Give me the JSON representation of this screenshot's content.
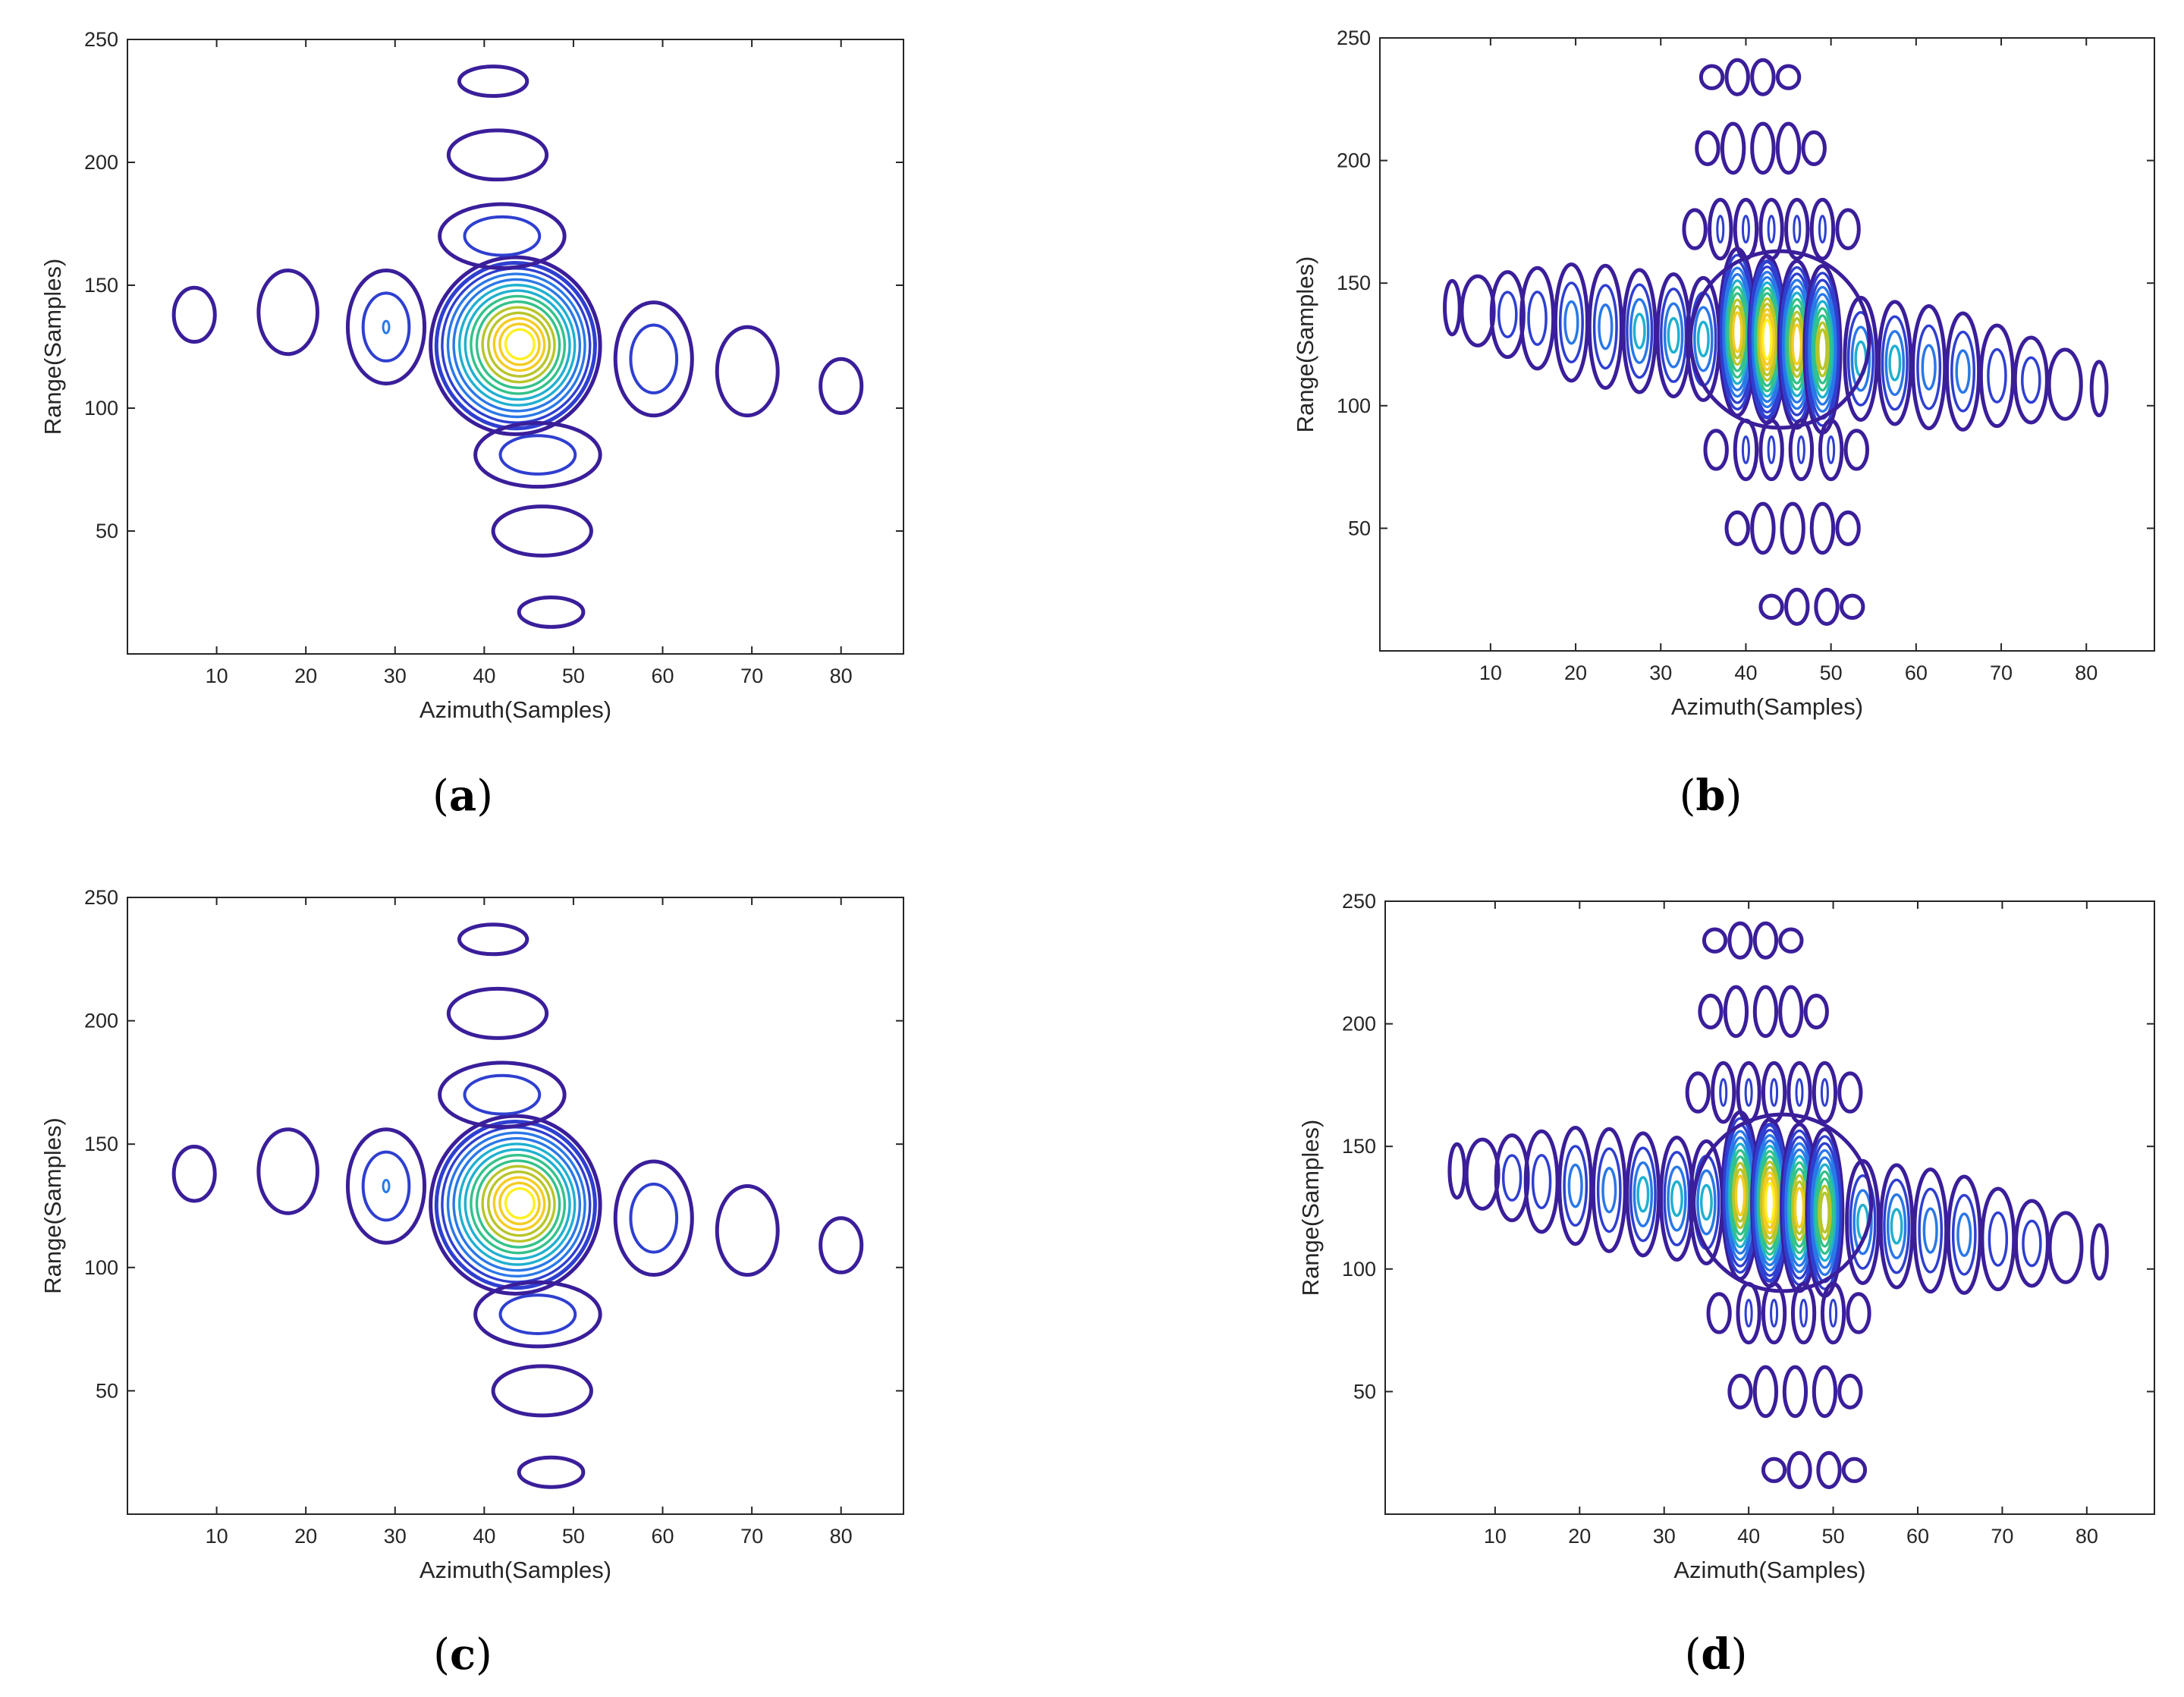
{
  "chart_data": [
    {
      "type": "contour",
      "panel": "a",
      "xlabel": "Azimuth(Samples)",
      "ylabel": "Range(Samples)",
      "xlim": [
        0,
        87
      ],
      "ylim": [
        0,
        250
      ],
      "xticks": [
        10,
        20,
        30,
        40,
        50,
        60,
        70,
        80
      ],
      "yticks": [
        50,
        100,
        150,
        200,
        250
      ],
      "grid": false,
      "colormap": [
        "#3a1e9a",
        "#2f3fd0",
        "#2a78e8",
        "#1fb0d0",
        "#33c28a",
        "#b8c52a",
        "#f4cc22",
        "#fff020"
      ],
      "mainlobe": {
        "x": 44,
        "y": 126,
        "levels": 14
      },
      "sidelobes": [
        {
          "x": 7.5,
          "y": 138,
          "rx": 2.3,
          "ry": 11,
          "levels": 1
        },
        {
          "x": 18,
          "y": 139,
          "rx": 3.3,
          "ry": 17,
          "levels": 1
        },
        {
          "x": 29,
          "y": 133,
          "rx": 4.3,
          "ry": 23,
          "levels": 2
        },
        {
          "x": 59,
          "y": 120,
          "rx": 4.3,
          "ry": 23,
          "levels": 2
        },
        {
          "x": 69.5,
          "y": 115,
          "rx": 3.4,
          "ry": 18,
          "levels": 1
        },
        {
          "x": 80,
          "y": 109,
          "rx": 2.3,
          "ry": 11,
          "levels": 1
        },
        {
          "x": 41,
          "y": 233,
          "rx": 3.8,
          "ry": 6,
          "levels": 1
        },
        {
          "x": 41.5,
          "y": 203,
          "rx": 5.5,
          "ry": 10,
          "levels": 1
        },
        {
          "x": 42,
          "y": 170,
          "rx": 7,
          "ry": 13,
          "levels": 2
        },
        {
          "x": 46,
          "y": 81,
          "rx": 7,
          "ry": 13,
          "levels": 2
        },
        {
          "x": 46.5,
          "y": 50,
          "rx": 5.5,
          "ry": 10,
          "levels": 1
        },
        {
          "x": 47.5,
          "y": 17,
          "rx": 3.6,
          "ry": 6,
          "levels": 1
        }
      ]
    },
    {
      "type": "contour",
      "panel": "b",
      "xlabel": "Azimuth(Samples)",
      "ylabel": "Range(Samples)",
      "xlim": [
        -3,
        88
      ],
      "ylim": [
        0,
        250
      ],
      "xticks": [
        10,
        20,
        30,
        40,
        50,
        60,
        70,
        80
      ],
      "yticks": [
        50,
        100,
        150,
        200,
        250
      ],
      "grid": false,
      "colormap": [
        "#3a1e9a",
        "#2f3fd0",
        "#2a78e8",
        "#1fb0d0",
        "#33c28a",
        "#b8c52a",
        "#f4cc22",
        "#fff020"
      ],
      "mainlobe_peaks": [
        {
          "x": 39,
          "y": 130,
          "levels": 11
        },
        {
          "x": 42.5,
          "y": 127,
          "levels": 13
        },
        {
          "x": 46,
          "y": 125,
          "levels": 11
        },
        {
          "x": 49,
          "y": 123,
          "levels": 10
        }
      ],
      "sidelobe_rows": [
        {
          "y": 234,
          "x": [
            36,
            39,
            42,
            45
          ]
        },
        {
          "y": 205,
          "x": [
            35.5,
            38.5,
            42,
            45,
            48
          ]
        },
        {
          "y": 172,
          "x": [
            34,
            37,
            40,
            43,
            46,
            49,
            52
          ]
        },
        {
          "y": 82,
          "x": [
            36.5,
            40,
            43,
            46.5,
            50,
            53
          ]
        },
        {
          "y": 50,
          "x": [
            39,
            42,
            45.5,
            49,
            52
          ]
        },
        {
          "y": 18,
          "x": [
            43,
            46,
            49.5,
            52.5
          ]
        }
      ],
      "range_row": {
        "x": [
          5.5,
          8.5,
          12,
          15.5,
          19.5,
          23.5,
          27.5,
          31.5,
          35,
          53.5,
          57.5,
          61.5,
          65.5,
          69.5,
          73.5,
          77.5,
          81.5
        ],
        "y_left": 140,
        "y_right": 107
      }
    },
    {
      "type": "contour",
      "panel": "c",
      "xlabel": "Azimuth(Samples)",
      "ylabel": "Range(Samples)",
      "xlim": [
        0,
        87
      ],
      "ylim": [
        0,
        250
      ],
      "xticks": [
        10,
        20,
        30,
        40,
        50,
        60,
        70,
        80
      ],
      "yticks": [
        50,
        100,
        150,
        200,
        250
      ],
      "grid": false,
      "colormap": [
        "#3a1e9a",
        "#2f3fd0",
        "#2a78e8",
        "#1fb0d0",
        "#33c28a",
        "#b8c52a",
        "#f4cc22",
        "#fff020"
      ],
      "mainlobe": {
        "x": 44,
        "y": 126,
        "levels": 14
      },
      "sidelobes": [
        {
          "x": 7.5,
          "y": 138,
          "rx": 2.3,
          "ry": 11,
          "levels": 1
        },
        {
          "x": 18,
          "y": 139,
          "rx": 3.3,
          "ry": 17,
          "levels": 1
        },
        {
          "x": 29,
          "y": 133,
          "rx": 4.3,
          "ry": 23,
          "levels": 2
        },
        {
          "x": 59,
          "y": 120,
          "rx": 4.3,
          "ry": 23,
          "levels": 2
        },
        {
          "x": 69.5,
          "y": 115,
          "rx": 3.4,
          "ry": 18,
          "levels": 1
        },
        {
          "x": 80,
          "y": 109,
          "rx": 2.3,
          "ry": 11,
          "levels": 1
        },
        {
          "x": 41,
          "y": 233,
          "rx": 3.8,
          "ry": 6,
          "levels": 1
        },
        {
          "x": 41.5,
          "y": 203,
          "rx": 5.5,
          "ry": 10,
          "levels": 1
        },
        {
          "x": 42,
          "y": 170,
          "rx": 7,
          "ry": 13,
          "levels": 2
        },
        {
          "x": 46,
          "y": 81,
          "rx": 7,
          "ry": 13,
          "levels": 2
        },
        {
          "x": 46.5,
          "y": 50,
          "rx": 5.5,
          "ry": 10,
          "levels": 1
        },
        {
          "x": 47.5,
          "y": 17,
          "rx": 3.6,
          "ry": 6,
          "levels": 1
        }
      ]
    },
    {
      "type": "contour",
      "panel": "d",
      "xlabel": "Azimuth(Samples)",
      "ylabel": "Range(Samples)",
      "xlim": [
        -3,
        88
      ],
      "ylim": [
        0,
        250
      ],
      "xticks": [
        10,
        20,
        30,
        40,
        50,
        60,
        70,
        80
      ],
      "yticks": [
        50,
        100,
        150,
        200,
        250
      ],
      "grid": false,
      "colormap": [
        "#3a1e9a",
        "#2f3fd0",
        "#2a78e8",
        "#1fb0d0",
        "#33c28a",
        "#b8c52a",
        "#f4cc22",
        "#fff020"
      ],
      "mainlobe_peaks": [
        {
          "x": 39,
          "y": 130,
          "levels": 11
        },
        {
          "x": 42.5,
          "y": 127,
          "levels": 13
        },
        {
          "x": 46,
          "y": 125,
          "levels": 11
        },
        {
          "x": 49,
          "y": 123,
          "levels": 10
        }
      ],
      "sidelobe_rows": [
        {
          "y": 234,
          "x": [
            36,
            39,
            42,
            45
          ]
        },
        {
          "y": 205,
          "x": [
            35.5,
            38.5,
            42,
            45,
            48
          ]
        },
        {
          "y": 172,
          "x": [
            34,
            37,
            40,
            43,
            46,
            49,
            52
          ]
        },
        {
          "y": 82,
          "x": [
            36.5,
            40,
            43,
            46.5,
            50,
            53
          ]
        },
        {
          "y": 50,
          "x": [
            39,
            42,
            45.5,
            49,
            52
          ]
        },
        {
          "y": 18,
          "x": [
            43,
            46,
            49.5,
            52.5
          ]
        }
      ],
      "range_row": {
        "x": [
          5.5,
          8.5,
          12,
          15.5,
          19.5,
          23.5,
          27.5,
          31.5,
          35,
          53.5,
          57.5,
          61.5,
          65.5,
          69.5,
          73.5,
          77.5,
          81.5
        ],
        "y_left": 140,
        "y_right": 107
      }
    }
  ],
  "captions": [
    "a",
    "b",
    "c",
    "d"
  ]
}
